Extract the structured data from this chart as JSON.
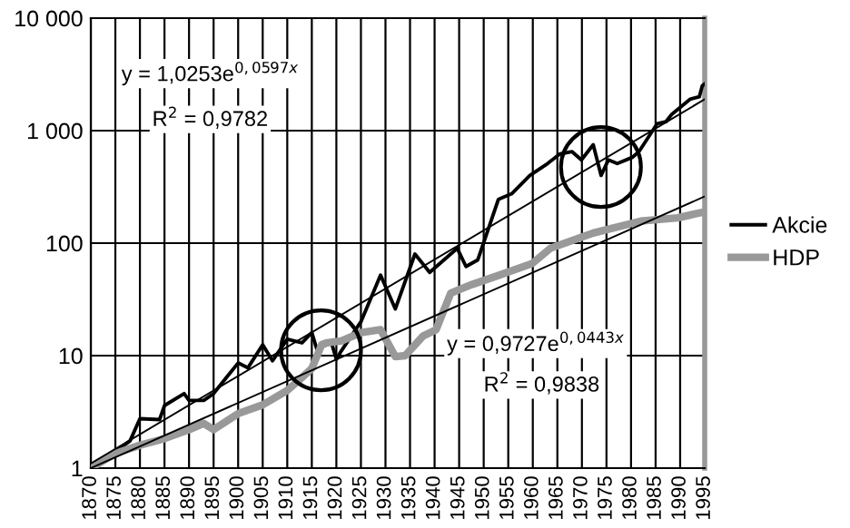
{
  "chart_data": {
    "type": "line",
    "ylim": [
      1,
      10000
    ],
    "log": true,
    "yticks": [
      1,
      10,
      100,
      {
        "value": 1000,
        "label": "1 000"
      },
      {
        "value": 10000,
        "label": "10 000"
      }
    ],
    "xlim": [
      1870,
      1995
    ],
    "xticks": [
      1870,
      1875,
      1880,
      1885,
      1890,
      1895,
      1900,
      1905,
      1910,
      1915,
      1920,
      1925,
      1930,
      1935,
      1940,
      1945,
      1950,
      1955,
      1960,
      1965,
      1970,
      1975,
      1980,
      1985,
      1990,
      1995
    ],
    "grid": true,
    "legend": "right",
    "series": [
      {
        "name": "Akcie",
        "color": "#000000",
        "x": [
          1870,
          1875,
          1878,
          1880,
          1884,
          1885,
          1889,
          1890,
          1893,
          1895,
          1898,
          1900,
          1902,
          1905,
          1907,
          1910,
          1913,
          1915,
          1916,
          1919,
          1920,
          1921,
          1925,
          1929,
          1932,
          1936,
          1939,
          1944.6,
          1946.4,
          1948.8,
          1953,
          1955.7,
          1959.4,
          1963,
          1965.5,
          1968,
          1969.9,
          1972.3,
          1973.9,
          1975.4,
          1977.2,
          1980.3,
          1981.6,
          1985.3,
          1987.1,
          1988.3,
          1992,
          1993.9,
          1994.5,
          1995
        ],
        "values": [
          1.0,
          1.4,
          1.75,
          2.75,
          2.7,
          3.6,
          4.6,
          4.0,
          4.0,
          4.6,
          6.7,
          8.6,
          7.8,
          12.5,
          9,
          14,
          13,
          16,
          11.5,
          13,
          9.3,
          11,
          20,
          52,
          26,
          80,
          55,
          90,
          62,
          71,
          245,
          275,
          400,
          510,
          620,
          650,
          550,
          750,
          400,
          550,
          510,
          580,
          650,
          1150,
          1200,
          1400,
          1900,
          2000,
          2500,
          2600
        ]
      },
      {
        "name": "HDP",
        "color": "#999999",
        "x": [
          1870,
          1875,
          1880,
          1885,
          1890,
          1893,
          1895,
          1900,
          1905,
          1910,
          1913,
          1915,
          1917,
          1918,
          1921,
          1925,
          1929,
          1932,
          1934,
          1937.7,
          1940.3,
          1943.3,
          1947.7,
          1953.2,
          1959.9,
          1963.6,
          1972.3,
          1982,
          1989.5,
          1995
        ],
        "values": [
          1.0,
          1.35,
          1.6,
          1.83,
          2.2,
          2.5,
          2.2,
          3.05,
          3.65,
          4.9,
          6.4,
          7.7,
          12.5,
          13,
          13.5,
          16,
          17,
          9.8,
          10,
          15,
          17,
          36,
          43,
          52,
          66,
          90,
          123,
          157,
          168,
          190
        ]
      },
      {
        "color": "#000000",
        "x": [
          1870,
          1995
        ],
        "values": [
          1.1,
          1900
        ]
      },
      {
        "color": "#000000",
        "x": [
          1870,
          1995
        ],
        "values": [
          1.0,
          260
        ]
      }
    ],
    "annotations": [
      "y = 1,0253e$^{0,0597x}$",
      "R$^{2}$ = 0,9782",
      "y = 0,9727e$^{0,0443x}$",
      "R$^{2}$ = 0,9838"
    ]
  }
}
